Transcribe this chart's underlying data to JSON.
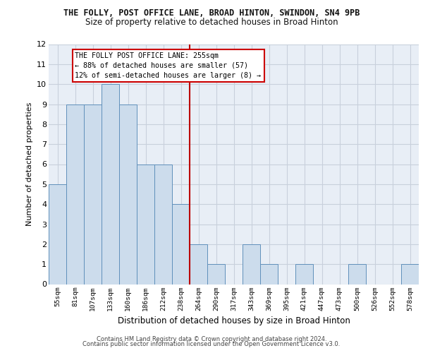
{
  "title_line1": "THE FOLLY, POST OFFICE LANE, BROAD HINTON, SWINDON, SN4 9PB",
  "title_line2": "Size of property relative to detached houses in Broad Hinton",
  "xlabel": "Distribution of detached houses by size in Broad Hinton",
  "ylabel": "Number of detached properties",
  "categories": [
    "55sqm",
    "81sqm",
    "107sqm",
    "133sqm",
    "160sqm",
    "186sqm",
    "212sqm",
    "238sqm",
    "264sqm",
    "290sqm",
    "317sqm",
    "343sqm",
    "369sqm",
    "395sqm",
    "421sqm",
    "447sqm",
    "473sqm",
    "500sqm",
    "526sqm",
    "552sqm",
    "578sqm"
  ],
  "values": [
    5,
    9,
    9,
    10,
    9,
    6,
    6,
    4,
    2,
    1,
    0,
    2,
    1,
    0,
    1,
    0,
    0,
    1,
    0,
    0,
    1
  ],
  "bar_color": "#ccdcec",
  "bar_edge_color": "#6090bb",
  "grid_color": "#c8d0dc",
  "background_color": "#e8eef6",
  "vline_x_index": 8,
  "vline_color": "#bb0000",
  "annotation_line1": "THE FOLLY POST OFFICE LANE: 255sqm",
  "annotation_line2": "← 88% of detached houses are smaller (57)",
  "annotation_line3": "12% of semi-detached houses are larger (8) →",
  "annotation_box_color": "#cc0000",
  "ylim": [
    0,
    12
  ],
  "yticks": [
    0,
    1,
    2,
    3,
    4,
    5,
    6,
    7,
    8,
    9,
    10,
    11,
    12
  ],
  "footer_line1": "Contains HM Land Registry data © Crown copyright and database right 2024.",
  "footer_line2": "Contains public sector information licensed under the Open Government Licence v3.0."
}
